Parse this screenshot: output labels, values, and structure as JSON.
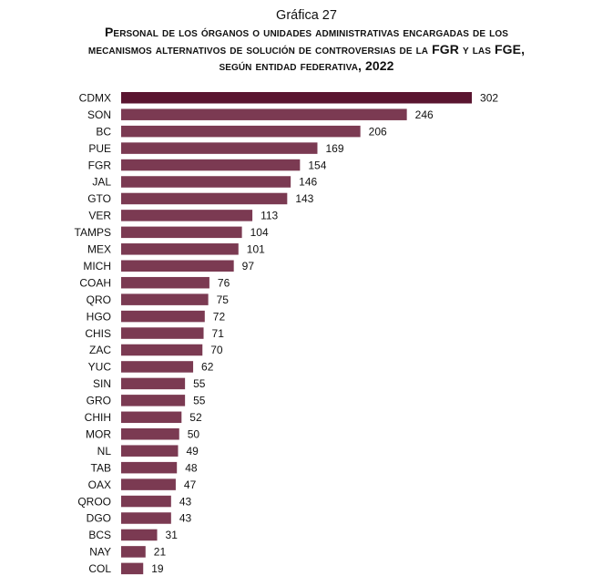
{
  "header": {
    "chart_number": "Gráfica 27",
    "title_lines": [
      "Personal de los órganos o unidades administrativas encargadas de los",
      "mecanismos alternativos de solución de controversias de la FGR y las FGE,",
      "según entidad federativa, 2022"
    ]
  },
  "chart_data": {
    "type": "bar",
    "orientation": "horizontal",
    "title": "Personal de los órganos o unidades administrativas encargadas de los mecanismos alternativos de solución de controversias de la FGR y las FGE, según entidad federativa, 2022",
    "xlabel": "",
    "ylabel": "",
    "categories": [
      "CDMX",
      "SON",
      "BC",
      "PUE",
      "FGR",
      "JAL",
      "GTO",
      "VER",
      "TAMPS",
      "MEX",
      "MICH",
      "COAH",
      "QRO",
      "HGO",
      "CHIS",
      "ZAC",
      "YUC",
      "SIN",
      "GRO",
      "CHIH",
      "MOR",
      "NL",
      "TAB",
      "OAX",
      "QROO",
      "DGO",
      "BCS",
      "NAY",
      "COL"
    ],
    "values": [
      302,
      246,
      206,
      169,
      154,
      146,
      143,
      113,
      104,
      101,
      97,
      76,
      75,
      72,
      71,
      70,
      62,
      55,
      55,
      52,
      50,
      49,
      48,
      47,
      43,
      43,
      31,
      21,
      19
    ],
    "highlight_category": "CDMX",
    "colors": {
      "highlight": "#5a1530",
      "bar": "#7b3a52"
    },
    "data_labels": true,
    "grid": false,
    "legend": "none"
  }
}
